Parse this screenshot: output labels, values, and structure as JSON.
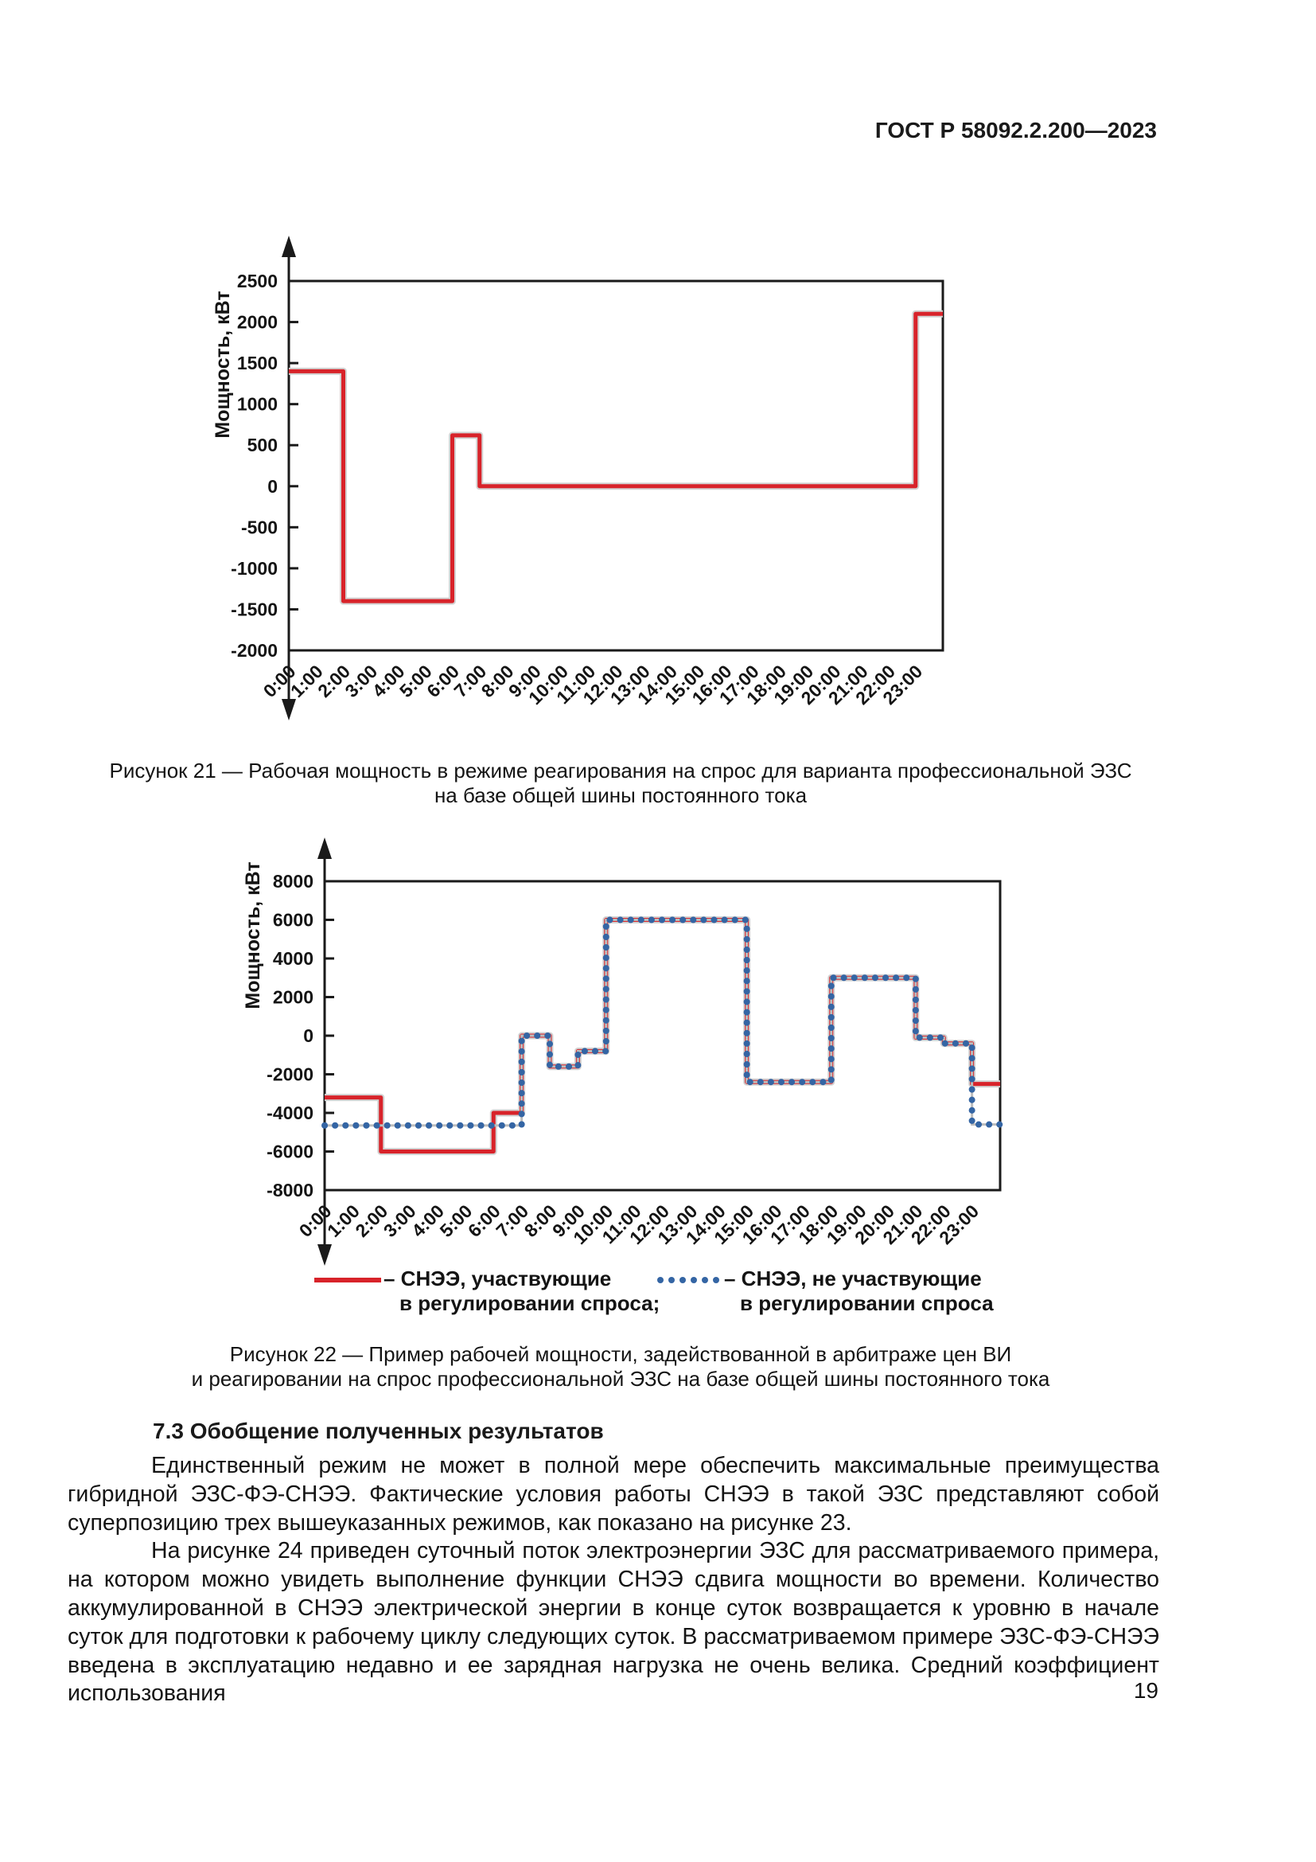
{
  "header": {
    "document_number": "ГОСТ Р 58092.2.200—2023"
  },
  "footer": {
    "page_number": "19"
  },
  "colors": {
    "series_red": "#d8232a",
    "series_blue": "#3465a4",
    "axis": "#1a1a1a"
  },
  "figure21": {
    "caption_line1": "Рисунок 21 — Рабочая мощность в режиме реагирования на спрос для варианта профессиональной ЭЗС",
    "caption_line2": "на базе общей шины постоянного тока"
  },
  "figure22": {
    "caption_line1": "Рисунок 22 — Пример рабочей мощности, задействованной в арбитраже цен ВИ",
    "caption_line2": "и реагировании на спрос профессиональной ЭЗС на базе общей шины постоянного тока",
    "legend": [
      {
        "marker": "red-solid-line",
        "color": "#d8232a",
        "label_line1": "– СНЭЭ, участвующие",
        "label_line2": "в регулировании спроса;"
      },
      {
        "marker": "blue-dotted-line",
        "color": "#3465a4",
        "label_line1": "– СНЭЭ, не участвующие",
        "label_line2": "в регулировании спроса"
      }
    ]
  },
  "section": {
    "heading": "7.3 Обобщение полученных результатов",
    "paragraphs": [
      "Единственный режим не может в полной мере обеспечить максимальные преимущества гибридной ЭЗС-ФЭ-СНЭЭ. Фактические условия работы СНЭЭ в такой ЭЗС представляют собой суперпозицию трех вышеуказанных режимов, как показано на рисунке 23.",
      "На рисунке 24 приведен суточный поток электроэнергии ЭЗС для рассматриваемого примера, на котором можно увидеть выполнение функции СНЭЭ сдвига мощности во времени. Количество аккумулированной в СНЭЭ электрической энергии в конце суток возвращается к уровню в начале суток для подготовки к рабочему циклу следующих суток. В рассматриваемом примере ЭЗС-ФЭ-СНЭЭ введена в эксплуатацию недавно и ее зарядная нагрузка не очень велика. Средний коэффициент использования"
    ]
  },
  "chart_data": [
    {
      "type": "line",
      "line_style": "step",
      "figure": "Рисунок 21",
      "ylabel": "Мощность, кВт",
      "ylim": [
        -2000,
        2500
      ],
      "y_ticks": [
        2500,
        2000,
        1500,
        1000,
        500,
        0,
        -500,
        -1000,
        -1500,
        -2000
      ],
      "x_hours": [
        0,
        24
      ],
      "x_tick_labels": [
        "0:00",
        "1:00",
        "2:00",
        "3:00",
        "4:00",
        "5:00",
        "6:00",
        "7:00",
        "8:00",
        "9:00",
        "10:00",
        "11:00",
        "12:00",
        "13:00",
        "14:00",
        "15:00",
        "16:00",
        "17:00",
        "18:00",
        "19:00",
        "20:00",
        "21:00",
        "22:00",
        "23:00"
      ],
      "grid": false,
      "series": [
        {
          "color": "#d8232a",
          "style": "solid",
          "steps_h_kw": [
            [
              0,
              2,
              1400
            ],
            [
              2,
              6,
              -1400
            ],
            [
              6,
              7,
              620
            ],
            [
              7,
              23,
              0
            ],
            [
              23,
              24,
              2100
            ]
          ]
        }
      ]
    },
    {
      "type": "line",
      "line_style": "step",
      "figure": "Рисунок 22",
      "ylabel": "Мощность, кВт",
      "ylim": [
        -8000,
        8000
      ],
      "y_ticks": [
        8000,
        6000,
        4000,
        2000,
        0,
        -2000,
        -4000,
        -6000,
        -8000
      ],
      "x_hours": [
        0,
        24
      ],
      "x_tick_labels": [
        "0:00",
        "1:00",
        "2:00",
        "3:00",
        "4:00",
        "5:00",
        "6:00",
        "7:00",
        "8:00",
        "9:00",
        "10:00",
        "11:00",
        "12:00",
        "13:00",
        "14:00",
        "15:00",
        "16:00",
        "17:00",
        "18:00",
        "19:00",
        "20:00",
        "21:00",
        "22:00",
        "23:00"
      ],
      "grid": false,
      "legend_position": "below",
      "series": [
        {
          "name": "СНЭЭ, участвующие в регулировании спроса",
          "color": "#d8232a",
          "style": "solid",
          "steps_h_kw": [
            [
              0,
              2,
              -3200
            ],
            [
              2,
              6,
              -6000
            ],
            [
              6,
              7,
              -4000
            ],
            [
              7,
              8,
              0
            ],
            [
              8,
              9,
              -1600
            ],
            [
              9,
              10,
              -800
            ],
            [
              10,
              15,
              6000
            ],
            [
              15,
              18,
              -2400
            ],
            [
              18,
              21,
              3000
            ],
            [
              21,
              22,
              -100
            ],
            [
              22,
              23,
              -400
            ],
            [
              23,
              24,
              -2500
            ]
          ]
        },
        {
          "name": "СНЭЭ, не участвующие в регулировании спроса",
          "color": "#3465a4",
          "style": "dotted",
          "steps_h_kw": [
            [
              0,
              7,
              -4650
            ],
            [
              7,
              8,
              0
            ],
            [
              8,
              9,
              -1600
            ],
            [
              9,
              10,
              -800
            ],
            [
              10,
              15,
              6000
            ],
            [
              15,
              18,
              -2400
            ],
            [
              18,
              21,
              3000
            ],
            [
              21,
              22,
              -100
            ],
            [
              22,
              23,
              -400
            ],
            [
              23,
              24,
              -4600
            ]
          ]
        }
      ]
    }
  ]
}
